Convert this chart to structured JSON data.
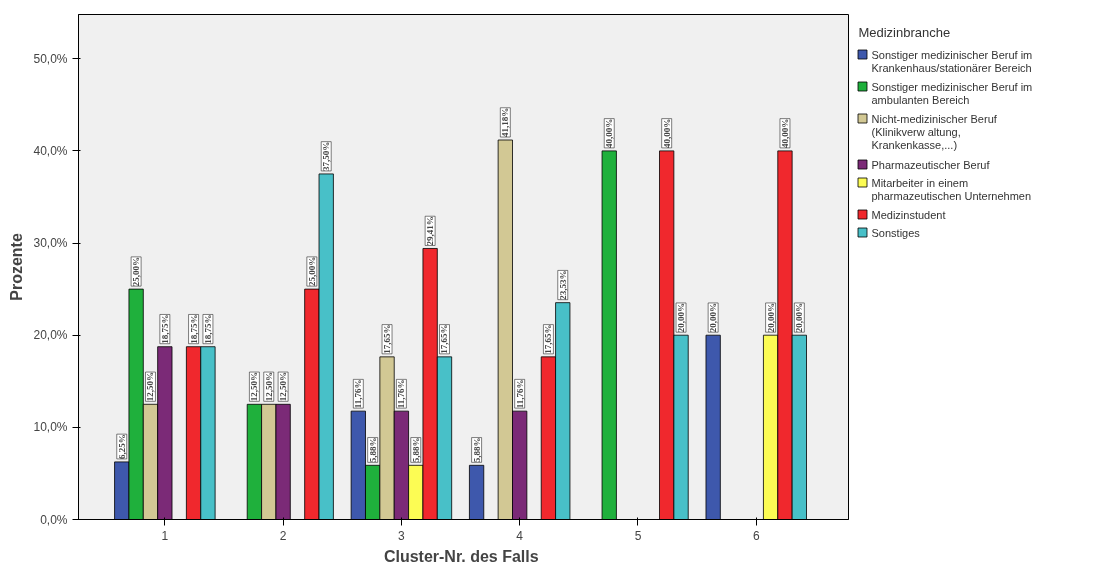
{
  "chart_data": {
    "type": "bar",
    "xlabel": "Cluster-Nr.  des Falls",
    "ylabel": "Prozente",
    "legend_title": "Medizinbranche",
    "legend": "right",
    "grid": false,
    "categories": [
      "1",
      "2",
      "3",
      "4",
      "5",
      "6"
    ],
    "ylim": [
      0,
      54.8
    ],
    "yticks": [
      {
        "value": 0,
        "label": "0,0%"
      },
      {
        "value": 10,
        "label": "10,0%"
      },
      {
        "value": 20,
        "label": "20,0%"
      },
      {
        "value": 30,
        "label": "30,0%"
      },
      {
        "value": 40,
        "label": "40,0%"
      },
      {
        "value": 50,
        "label": "50,0%"
      }
    ],
    "series": [
      {
        "name": "Sonstiger medizinischer Beruf im Krankenhaus/stationärer Bereich",
        "color": "#3e58ac",
        "values": [
          6.25,
          null,
          11.76,
          5.88,
          null,
          20.0
        ],
        "value_labels": [
          "6,25%",
          null,
          "11,76%",
          "5,88%",
          null,
          "20,00%"
        ]
      },
      {
        "name": "Sonstiger medizinischer Beruf im ambulanten Bereich",
        "color": "#1fb03c",
        "values": [
          25.0,
          12.5,
          5.88,
          null,
          40.0,
          null
        ],
        "value_labels": [
          "25,00%",
          "12,50%",
          "5,88%",
          null,
          "40,00%",
          null
        ]
      },
      {
        "name": "Nicht-medizinischer Beruf (Klinikverw altung, Krankenkasse,...)",
        "color": "#d2c894",
        "values": [
          12.5,
          12.5,
          17.65,
          41.18,
          null,
          null
        ],
        "value_labels": [
          "12,50%",
          "12,50%",
          "17,65%",
          "41,18%",
          null,
          null
        ]
      },
      {
        "name": "Pharmazeutischer Beruf",
        "color": "#7b2a77",
        "values": [
          18.75,
          12.5,
          11.76,
          11.76,
          null,
          null
        ],
        "value_labels": [
          "18,75%",
          "12,50%",
          "11,76%",
          "11,76%",
          null,
          null
        ]
      },
      {
        "name": "Mitarbeiter in einem pharmazeutischen Unternehmen",
        "color": "#fcfc54",
        "values": [
          null,
          null,
          5.88,
          null,
          null,
          20.0
        ],
        "value_labels": [
          null,
          null,
          "5,88%",
          null,
          null,
          "20,00%"
        ]
      },
      {
        "name": "Medizinstudent",
        "color": "#f0282d",
        "values": [
          18.75,
          25.0,
          29.41,
          17.65,
          40.0,
          40.0
        ],
        "value_labels": [
          "18,75%",
          "25,00%",
          "29,41%",
          "17,65%",
          "40,00%",
          "40,00%"
        ]
      },
      {
        "name": "Sonstiges",
        "color": "#48c0c8",
        "values": [
          18.75,
          37.5,
          17.65,
          23.53,
          20.0,
          20.0
        ],
        "value_labels": [
          "18,75%",
          "37,50%",
          "17,65%",
          "23,53%",
          "20,00%",
          "20,00%"
        ]
      }
    ]
  }
}
